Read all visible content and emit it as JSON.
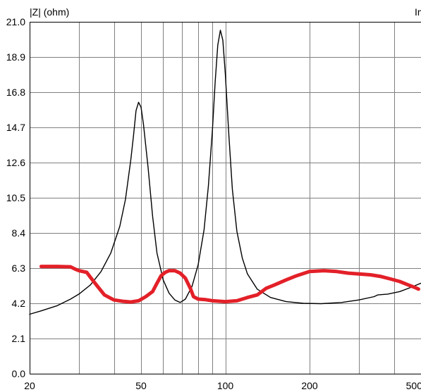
{
  "chart_data": {
    "type": "line",
    "ylabel": "|Z| (ohm)",
    "corner_label_right": "Im",
    "xscale": "log",
    "xlim": [
      20,
      500
    ],
    "ylim": [
      0.0,
      21.0
    ],
    "x_ticks": [
      20,
      50,
      100,
      200,
      500
    ],
    "x_tick_labels": [
      "20",
      "50",
      "100",
      "200",
      "500"
    ],
    "y_ticks": [
      0.0,
      2.1,
      4.2,
      6.3,
      8.4,
      10.5,
      12.6,
      14.7,
      16.8,
      18.9,
      21.0
    ],
    "y_tick_labels": [
      "0.0",
      "2.1",
      "4.2",
      "6.3",
      "8.4",
      "10.5",
      "12.6",
      "14.7",
      "16.8",
      "18.9",
      "21.0"
    ],
    "x_minor_grid": [
      30,
      40,
      60,
      70,
      80,
      90,
      300,
      400
    ],
    "grid": true,
    "series": [
      {
        "color": "#000000",
        "points": [
          [
            20,
            3.55
          ],
          [
            22,
            3.75
          ],
          [
            25,
            4.05
          ],
          [
            28,
            4.45
          ],
          [
            30,
            4.75
          ],
          [
            33,
            5.3
          ],
          [
            36,
            6.1
          ],
          [
            39,
            7.2
          ],
          [
            42,
            8.8
          ],
          [
            44,
            10.4
          ],
          [
            46,
            12.8
          ],
          [
            47,
            14.2
          ],
          [
            48,
            15.7
          ],
          [
            49,
            16.2
          ],
          [
            50,
            15.9
          ],
          [
            51,
            14.9
          ],
          [
            53,
            12.3
          ],
          [
            55,
            9.4
          ],
          [
            57,
            7.2
          ],
          [
            60,
            5.6
          ],
          [
            63,
            4.8
          ],
          [
            66,
            4.4
          ],
          [
            69,
            4.25
          ],
          [
            72,
            4.45
          ],
          [
            76,
            5.2
          ],
          [
            80,
            6.5
          ],
          [
            84,
            8.6
          ],
          [
            87,
            11.2
          ],
          [
            90,
            14.6
          ],
          [
            92,
            17.4
          ],
          [
            94,
            19.6
          ],
          [
            96,
            20.5
          ],
          [
            98,
            19.9
          ],
          [
            100,
            17.9
          ],
          [
            103,
            14.2
          ],
          [
            106,
            11.0
          ],
          [
            110,
            8.5
          ],
          [
            115,
            6.9
          ],
          [
            120,
            5.95
          ],
          [
            130,
            5.05
          ],
          [
            145,
            4.55
          ],
          [
            165,
            4.3
          ],
          [
            190,
            4.2
          ],
          [
            220,
            4.18
          ],
          [
            260,
            4.25
          ],
          [
            300,
            4.4
          ],
          [
            340,
            4.6
          ],
          [
            350,
            4.7
          ],
          [
            380,
            4.75
          ],
          [
            420,
            4.9
          ],
          [
            460,
            5.15
          ],
          [
            500,
            5.4
          ]
        ]
      },
      {
        "color": "#e32028",
        "points": [
          [
            22,
            6.4
          ],
          [
            25,
            6.4
          ],
          [
            28,
            6.38
          ],
          [
            29,
            6.25
          ],
          [
            30,
            6.15
          ],
          [
            32,
            6.05
          ],
          [
            33,
            5.75
          ],
          [
            35,
            5.2
          ],
          [
            37,
            4.7
          ],
          [
            40,
            4.4
          ],
          [
            43,
            4.32
          ],
          [
            46,
            4.28
          ],
          [
            49,
            4.35
          ],
          [
            52,
            4.6
          ],
          [
            55,
            4.9
          ],
          [
            57,
            5.4
          ],
          [
            59,
            5.85
          ],
          [
            61,
            6.05
          ],
          [
            63,
            6.15
          ],
          [
            66,
            6.15
          ],
          [
            69,
            6.0
          ],
          [
            72,
            5.7
          ],
          [
            75,
            5.1
          ],
          [
            77,
            4.6
          ],
          [
            80,
            4.45
          ],
          [
            85,
            4.42
          ],
          [
            90,
            4.35
          ],
          [
            100,
            4.3
          ],
          [
            110,
            4.35
          ],
          [
            120,
            4.55
          ],
          [
            130,
            4.7
          ],
          [
            140,
            5.1
          ],
          [
            150,
            5.3
          ],
          [
            165,
            5.6
          ],
          [
            180,
            5.85
          ],
          [
            200,
            6.1
          ],
          [
            225,
            6.15
          ],
          [
            250,
            6.1
          ],
          [
            275,
            6.0
          ],
          [
            300,
            5.95
          ],
          [
            330,
            5.9
          ],
          [
            360,
            5.8
          ],
          [
            390,
            5.65
          ],
          [
            420,
            5.5
          ],
          [
            450,
            5.3
          ],
          [
            475,
            5.15
          ],
          [
            490,
            5.05
          ]
        ]
      }
    ]
  }
}
